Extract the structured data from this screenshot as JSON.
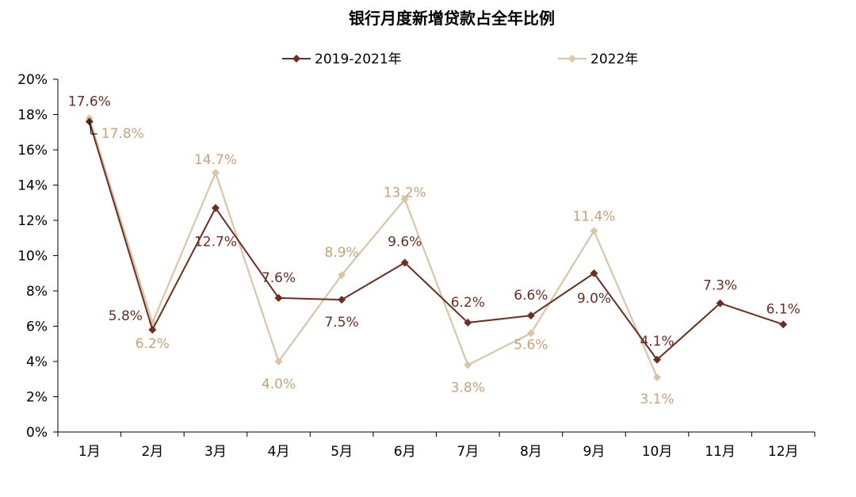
{
  "chart_data": {
    "type": "line",
    "title": "银行月度新增贷款占全年比例",
    "xlabel": "",
    "ylabel": "",
    "categories": [
      "1月",
      "2月",
      "3月",
      "4月",
      "5月",
      "6月",
      "7月",
      "8月",
      "9月",
      "10月",
      "11月",
      "12月"
    ],
    "y_ticks": [
      "0%",
      "2%",
      "4%",
      "6%",
      "8%",
      "10%",
      "12%",
      "14%",
      "16%",
      "18%",
      "20%"
    ],
    "ylim": [
      0,
      20
    ],
    "grid": false,
    "legend_position": "top-center",
    "series": [
      {
        "name": "2019-2021年",
        "color": "#6b2e1f",
        "marker": "diamond",
        "values": [
          17.6,
          5.8,
          12.7,
          7.6,
          7.5,
          9.6,
          6.2,
          6.6,
          9.0,
          4.1,
          7.3,
          6.1
        ],
        "labels": [
          "17.6%",
          "5.8%",
          "12.7%",
          "7.6%",
          "7.5%",
          "9.6%",
          "6.2%",
          "6.6%",
          "9.0%",
          "4.1%",
          "7.3%",
          "6.1%"
        ]
      },
      {
        "name": "2022年",
        "color": "#d9c5a7",
        "label_color": "#c8a274",
        "marker": "diamond",
        "values": [
          17.8,
          6.2,
          14.7,
          4.0,
          8.9,
          13.2,
          3.8,
          5.6,
          11.4,
          3.1,
          null,
          null
        ],
        "labels": [
          "17.8%",
          "6.2%",
          "14.7%",
          "4.0%",
          "8.9%",
          "13.2%",
          "3.8%",
          "5.6%",
          "11.4%",
          "3.1%",
          "",
          ""
        ]
      }
    ]
  }
}
